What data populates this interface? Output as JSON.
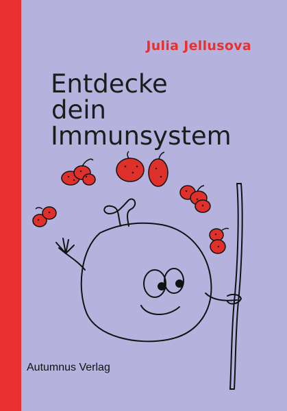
{
  "book": {
    "author": "Julia Jellusova",
    "title_lines": [
      "Entdecke",
      "dein",
      "Immunsystem"
    ],
    "publisher": "Autumnus Verlag"
  },
  "colors": {
    "background": "#b5b3de",
    "spine": "#e8302e",
    "author_text": "#e8302e",
    "germ_fill": "#e0302c",
    "line_art": "#111111"
  },
  "illustration": {
    "icons": [
      "immune-cell-character-icon",
      "germ-cluster-icon",
      "stick-icon"
    ]
  }
}
